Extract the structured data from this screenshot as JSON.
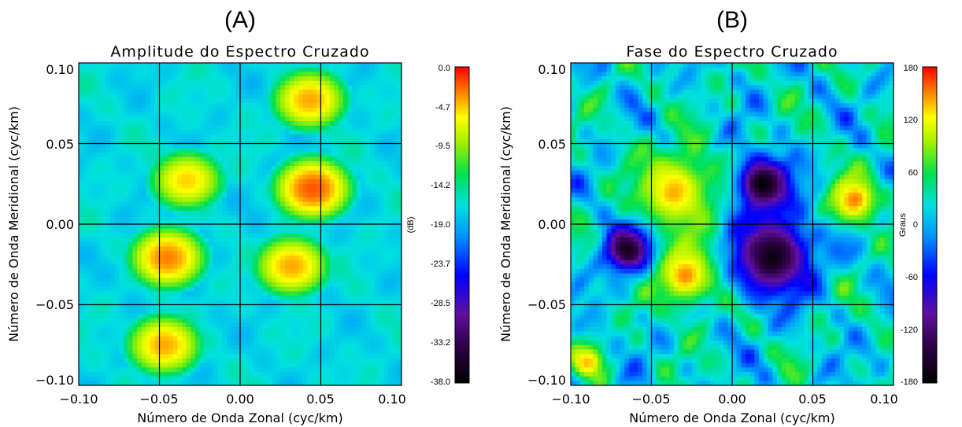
{
  "chart_data": [
    {
      "type": "heatmap",
      "panel": "(A)",
      "title": "Amplitude do Espectro Cruzado",
      "xlabel": "Número de Onda Zonal (cyc/km)",
      "ylabel": "Número de Onda Meridional (cyc/km)",
      "xlim": [
        -0.1,
        0.1
      ],
      "ylim": [
        -0.1,
        0.1
      ],
      "x_ticks": [
        "−0.10",
        "−0.05",
        "0.00",
        "0.05",
        "0.10"
      ],
      "y_ticks": [
        "0.10",
        "0.05",
        "0.00",
        "−0.05",
        "−0.10"
      ],
      "grid": true,
      "colorbar": {
        "label": "(dB)",
        "range": [
          -38.0,
          0.0
        ],
        "ticks": [
          "0.0",
          "-4.7",
          "-9.5",
          "-14.2",
          "-19.0",
          "-23.7",
          "-28.5",
          "-33.2",
          "-38.0"
        ]
      },
      "background_level": -17,
      "peaks": [
        {
          "x": 0.043,
          "y": 0.077,
          "value": -4
        },
        {
          "x": 0.045,
          "y": 0.022,
          "value": -2
        },
        {
          "x": -0.033,
          "y": 0.027,
          "value": -5
        },
        {
          "x": -0.045,
          "y": -0.021,
          "value": -3
        },
        {
          "x": 0.032,
          "y": -0.026,
          "value": -4
        },
        {
          "x": -0.047,
          "y": -0.075,
          "value": -4
        }
      ]
    },
    {
      "type": "heatmap",
      "panel": "(B)",
      "title": "Fase do Espectro Cruzado",
      "xlabel": "Número de Onda Zonal (cyc/km)",
      "ylabel": "Número de Onda Meridional (cyc/km)",
      "xlim": [
        -0.1,
        0.1
      ],
      "ylim": [
        -0.1,
        0.1
      ],
      "x_ticks": [
        "−0.10",
        "−0.05",
        "0.00",
        "0.05",
        "0.10"
      ],
      "y_ticks": [
        "0.10",
        "0.05",
        "0.00",
        "−0.05",
        "−0.10"
      ],
      "grid": true,
      "colorbar": {
        "label": "Graus",
        "range": [
          -180,
          180
        ],
        "ticks": [
          "180",
          "120",
          "60",
          "0",
          "-60",
          "-120",
          "-180"
        ]
      },
      "regions": [
        {
          "x": -0.035,
          "y": 0.02,
          "value": 130,
          "spread": 0.028
        },
        {
          "x": -0.028,
          "y": -0.03,
          "value": 140,
          "spread": 0.022
        },
        {
          "x": 0.025,
          "y": -0.02,
          "value": -160,
          "spread": 0.027
        },
        {
          "x": 0.02,
          "y": 0.025,
          "value": -170,
          "spread": 0.018
        },
        {
          "x": -0.065,
          "y": -0.015,
          "value": -165,
          "spread": 0.016
        },
        {
          "x": 0.075,
          "y": 0.015,
          "value": 150,
          "spread": 0.016
        },
        {
          "x": -0.09,
          "y": -0.085,
          "value": 150,
          "spread": 0.01
        }
      ]
    }
  ]
}
